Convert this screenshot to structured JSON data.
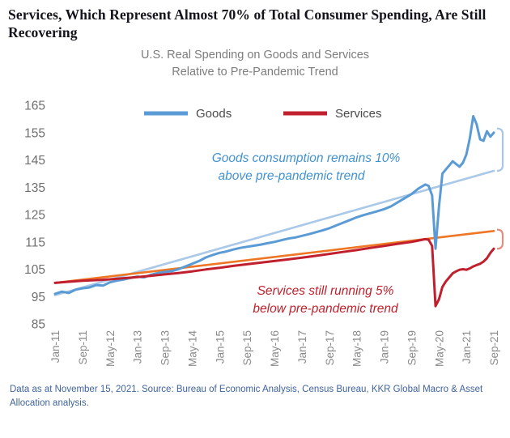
{
  "header": {
    "title": "Services, Which Represent Almost 70% of Total Consumer Spending, Are Still Recovering",
    "subtitle_line1": "U.S. Real Spending on Goods and Services",
    "subtitle_line2": "Relative to Pre-Pandemic Trend"
  },
  "legend": {
    "goods_label": "Goods",
    "services_label": "Services"
  },
  "annotations": {
    "goods_line1": "Goods consumption remains 10%",
    "goods_line2": "above pre-pandemic trend",
    "services_line1": "Services still running 5%",
    "services_line2": "below pre-pandemic trend"
  },
  "footer": {
    "source": "Data as at November 15, 2021. Source: Bureau of Economic Analysis, Census Bureau, KKR Global Macro & Asset Allocation analysis."
  },
  "colors": {
    "goods": "#5b9bd5",
    "goods_trend": "#aac8e8",
    "services": "#c0202e",
    "services_trend": "#ee7624",
    "goods_bracket": "#a9c6e5",
    "services_bracket": "#df8e80"
  },
  "chart_data": {
    "type": "line",
    "title": "U.S. Real Spending on Goods and Services Relative to Pre-Pandemic Trend",
    "x_unit": "months since Jan-2011",
    "x_max": 128,
    "ylim": [
      85,
      165
    ],
    "grid": false,
    "legend_position": "top-center-inside",
    "y_ticks": [
      165,
      155,
      145,
      135,
      125,
      115,
      105,
      95,
      85
    ],
    "x_ticks": [
      [
        "Jan-11",
        0
      ],
      [
        "Sep-11",
        8
      ],
      [
        "May-12",
        16
      ],
      [
        "Jan-13",
        24
      ],
      [
        "Sep-13",
        32
      ],
      [
        "May-14",
        40
      ],
      [
        "Jan-15",
        48
      ],
      [
        "Sep-15",
        56
      ],
      [
        "May-16",
        64
      ],
      [
        "Jan-17",
        72
      ],
      [
        "Sep-17",
        80
      ],
      [
        "May-18",
        88
      ],
      [
        "Jan-19",
        96
      ],
      [
        "Sep-19",
        104
      ],
      [
        "May-20",
        112
      ],
      [
        "Jan-21",
        120
      ],
      [
        "Sep-21",
        128
      ]
    ],
    "series": [
      {
        "id": "goods-trend",
        "name": "Goods pre-pandemic trend",
        "color": "#aac8e8",
        "width": 2.6,
        "points": [
          [
            0,
            95.5
          ],
          [
            128,
            141
          ]
        ]
      },
      {
        "id": "services-trend",
        "name": "Services pre-pandemic trend",
        "color": "#ee7624",
        "width": 2.6,
        "points": [
          [
            0,
            100
          ],
          [
            128,
            119
          ]
        ]
      },
      {
        "id": "goods",
        "name": "Goods",
        "color": "#5b9bd5",
        "width": 3,
        "points": [
          [
            0,
            96
          ],
          [
            2,
            96.8
          ],
          [
            4,
            96.3
          ],
          [
            6,
            97.5
          ],
          [
            8,
            98
          ],
          [
            10,
            98.3
          ],
          [
            12,
            99.2
          ],
          [
            14,
            99
          ],
          [
            16,
            100.2
          ],
          [
            18,
            100.8
          ],
          [
            20,
            101.2
          ],
          [
            22,
            101.8
          ],
          [
            24,
            102.3
          ],
          [
            26,
            102
          ],
          [
            28,
            103
          ],
          [
            30,
            103.6
          ],
          [
            32,
            104
          ],
          [
            34,
            104.3
          ],
          [
            36,
            105
          ],
          [
            38,
            106
          ],
          [
            40,
            107
          ],
          [
            42,
            108
          ],
          [
            44,
            109.3
          ],
          [
            46,
            110.2
          ],
          [
            48,
            111
          ],
          [
            50,
            111.5
          ],
          [
            52,
            112.2
          ],
          [
            54,
            112.8
          ],
          [
            56,
            113.2
          ],
          [
            58,
            113.6
          ],
          [
            60,
            114
          ],
          [
            62,
            114.5
          ],
          [
            64,
            115
          ],
          [
            66,
            115.6
          ],
          [
            68,
            116.2
          ],
          [
            70,
            116.6
          ],
          [
            72,
            117.2
          ],
          [
            74,
            117.8
          ],
          [
            76,
            118.5
          ],
          [
            78,
            119.2
          ],
          [
            80,
            120
          ],
          [
            82,
            121
          ],
          [
            84,
            122
          ],
          [
            86,
            123
          ],
          [
            88,
            124
          ],
          [
            90,
            124.8
          ],
          [
            92,
            125.5
          ],
          [
            94,
            126.2
          ],
          [
            96,
            127
          ],
          [
            98,
            128
          ],
          [
            100,
            129.5
          ],
          [
            102,
            131
          ],
          [
            104,
            132.5
          ],
          [
            106,
            134.5
          ],
          [
            108,
            136
          ],
          [
            109,
            135.5
          ],
          [
            110,
            132
          ],
          [
            111,
            112.5
          ],
          [
            112,
            128
          ],
          [
            113,
            140
          ],
          [
            114,
            141.5
          ],
          [
            115,
            143
          ],
          [
            116,
            144.5
          ],
          [
            117,
            143.5
          ],
          [
            118,
            142.5
          ],
          [
            119,
            144
          ],
          [
            120,
            147
          ],
          [
            121,
            153
          ],
          [
            122,
            161
          ],
          [
            123,
            158
          ],
          [
            124,
            152.5
          ],
          [
            125,
            152
          ],
          [
            126,
            155.5
          ],
          [
            127,
            153.5
          ],
          [
            128,
            155
          ]
        ]
      },
      {
        "id": "services",
        "name": "Services",
        "color": "#c0202e",
        "width": 3,
        "points": [
          [
            0,
            100
          ],
          [
            4,
            100.4
          ],
          [
            8,
            100.8
          ],
          [
            12,
            101
          ],
          [
            16,
            101.3
          ],
          [
            20,
            101.7
          ],
          [
            24,
            102.1
          ],
          [
            28,
            102.6
          ],
          [
            32,
            103.1
          ],
          [
            36,
            103.6
          ],
          [
            40,
            104.2
          ],
          [
            44,
            104.9
          ],
          [
            48,
            105.5
          ],
          [
            52,
            106.2
          ],
          [
            56,
            106.8
          ],
          [
            60,
            107.4
          ],
          [
            64,
            108
          ],
          [
            68,
            108.6
          ],
          [
            72,
            109.2
          ],
          [
            76,
            109.9
          ],
          [
            80,
            110.6
          ],
          [
            84,
            111.3
          ],
          [
            88,
            112
          ],
          [
            92,
            112.8
          ],
          [
            96,
            113.5
          ],
          [
            100,
            114.3
          ],
          [
            104,
            115
          ],
          [
            106,
            115.5
          ],
          [
            108,
            116
          ],
          [
            109,
            115.8
          ],
          [
            110,
            113.5
          ],
          [
            111,
            91.5
          ],
          [
            112,
            94
          ],
          [
            113,
            98.5
          ],
          [
            114,
            100.5
          ],
          [
            115,
            102
          ],
          [
            116,
            103.5
          ],
          [
            117,
            104.2
          ],
          [
            118,
            104.8
          ],
          [
            119,
            105
          ],
          [
            120,
            104.8
          ],
          [
            121,
            105.3
          ],
          [
            122,
            106
          ],
          [
            123,
            106.5
          ],
          [
            124,
            107
          ],
          [
            125,
            107.8
          ],
          [
            126,
            109
          ],
          [
            127,
            111
          ],
          [
            128,
            112.5
          ]
        ]
      }
    ],
    "brackets": [
      {
        "id": "goods-gap",
        "color": "#a9c6e5",
        "from": 141,
        "to": 156.5
      },
      {
        "id": "services-gap",
        "color": "#df8e80",
        "from": 112.5,
        "to": 119.5
      }
    ]
  }
}
